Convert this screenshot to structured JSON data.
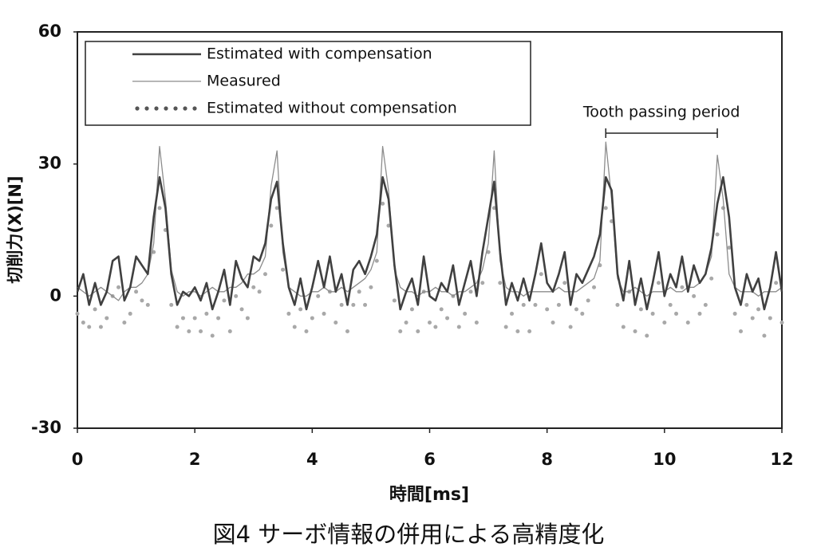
{
  "chart_data": {
    "type": "line",
    "title": "図4 サーボ情報の併用による高精度化",
    "xlabel": "時間[ms]",
    "ylabel": "切削力(X)[N]",
    "xlim": [
      0,
      12
    ],
    "xticks": [
      0,
      2,
      4,
      6,
      8,
      10,
      12
    ],
    "ylim": [
      -30,
      60
    ],
    "yticks": [
      -30,
      0,
      30,
      60
    ],
    "grid": false,
    "legend": "upper left",
    "annotation": {
      "text": "Tooth passing period",
      "x": [
        9,
        10.9
      ],
      "y": 37
    },
    "x": [
      0,
      0.1,
      0.2,
      0.3,
      0.4,
      0.5,
      0.6,
      0.7,
      0.8,
      0.9,
      1,
      1.1,
      1.2,
      1.3,
      1.4,
      1.5,
      1.6,
      1.7,
      1.8,
      1.9,
      2,
      2.1,
      2.2,
      2.3,
      2.4,
      2.5,
      2.6,
      2.7,
      2.8,
      2.9,
      3,
      3.1,
      3.2,
      3.3,
      3.4,
      3.5,
      3.6,
      3.7,
      3.8,
      3.9,
      4,
      4.1,
      4.2,
      4.3,
      4.4,
      4.5,
      4.6,
      4.7,
      4.8,
      4.9,
      5,
      5.1,
      5.2,
      5.3,
      5.4,
      5.5,
      5.6,
      5.7,
      5.8,
      5.9,
      6,
      6.1,
      6.2,
      6.3,
      6.4,
      6.5,
      6.6,
      6.7,
      6.8,
      6.9,
      7,
      7.1,
      7.2,
      7.3,
      7.4,
      7.5,
      7.6,
      7.7,
      7.8,
      7.9,
      8,
      8.1,
      8.2,
      8.3,
      8.4,
      8.5,
      8.6,
      8.7,
      8.8,
      8.9,
      9,
      9.1,
      9.2,
      9.3,
      9.4,
      9.5,
      9.6,
      9.7,
      9.8,
      9.9,
      10,
      10.1,
      10.2,
      10.3,
      10.4,
      10.5,
      10.6,
      10.7,
      10.8,
      10.9,
      11,
      11.1,
      11.2,
      11.3,
      11.4,
      11.5,
      11.6,
      11.7,
      11.8,
      11.9,
      12
    ],
    "series": [
      {
        "name": "Estimated with compensation",
        "color": "#404040",
        "style": "solid",
        "width": 2.6,
        "values": [
          1,
          5,
          -2,
          3,
          -2,
          1,
          8,
          9,
          -1,
          2,
          9,
          7,
          5,
          18,
          27,
          20,
          5,
          -2,
          1,
          0,
          2,
          -1,
          3,
          -3,
          1,
          6,
          -2,
          8,
          4,
          2,
          9,
          8,
          12,
          22,
          26,
          12,
          2,
          -2,
          4,
          -3,
          2,
          8,
          2,
          9,
          1,
          5,
          -2,
          6,
          8,
          5,
          9,
          14,
          27,
          22,
          7,
          -3,
          1,
          4,
          -2,
          9,
          0,
          -1,
          3,
          1,
          7,
          -2,
          3,
          8,
          0,
          10,
          18,
          26,
          10,
          -2,
          3,
          -1,
          4,
          -1,
          5,
          12,
          3,
          1,
          5,
          10,
          -2,
          5,
          3,
          6,
          9,
          14,
          27,
          24,
          5,
          -1,
          8,
          -2,
          4,
          -3,
          3,
          10,
          0,
          5,
          2,
          9,
          1,
          7,
          3,
          5,
          11,
          21,
          27,
          18,
          2,
          -2,
          5,
          1,
          4,
          -3,
          2,
          10,
          1
        ]
      },
      {
        "name": "Measured",
        "color": "#8c8c8c",
        "style": "solid",
        "width": 1.3,
        "values": [
          2,
          1,
          0,
          1,
          2,
          1,
          0,
          -1,
          1,
          2,
          2,
          3,
          5,
          12,
          34,
          22,
          6,
          1,
          0,
          1,
          1,
          0,
          1,
          2,
          1,
          1,
          2,
          2,
          3,
          5,
          5,
          6,
          9,
          25,
          33,
          10,
          2,
          1,
          0,
          0,
          1,
          1,
          2,
          1,
          1,
          2,
          1,
          2,
          3,
          4,
          6,
          10,
          34,
          24,
          6,
          2,
          1,
          1,
          0,
          1,
          1,
          2,
          1,
          1,
          0,
          1,
          1,
          2,
          3,
          6,
          12,
          33,
          8,
          2,
          1,
          1,
          0,
          1,
          1,
          1,
          1,
          1,
          2,
          1,
          1,
          1,
          2,
          3,
          4,
          8,
          35,
          22,
          4,
          1,
          1,
          2,
          1,
          0,
          1,
          1,
          1,
          2,
          1,
          1,
          2,
          2,
          3,
          5,
          9,
          32,
          22,
          5,
          2,
          1,
          1,
          1,
          0,
          1,
          1,
          1,
          2
        ]
      },
      {
        "name": "Estimated without compensation",
        "color": "#a8a8a8",
        "style": "dotted",
        "width": 5,
        "values": [
          -4,
          -6,
          -7,
          -3,
          -7,
          -5,
          0,
          2,
          -6,
          -4,
          1,
          -1,
          -2,
          10,
          20,
          15,
          -2,
          -7,
          -5,
          -8,
          -5,
          -8,
          -4,
          -9,
          -5,
          -1,
          -8,
          0,
          -3,
          -5,
          2,
          1,
          5,
          16,
          20,
          6,
          -4,
          -7,
          -3,
          -8,
          -5,
          0,
          -4,
          1,
          -6,
          -2,
          -8,
          -2,
          1,
          -2,
          2,
          8,
          21,
          16,
          -1,
          -8,
          -6,
          -3,
          -8,
          1,
          -6,
          -7,
          -3,
          -5,
          0,
          -7,
          -4,
          1,
          -6,
          3,
          10,
          20,
          3,
          -7,
          -4,
          -8,
          -2,
          -8,
          -2,
          5,
          -3,
          -6,
          -2,
          3,
          -7,
          -3,
          -4,
          -1,
          2,
          7,
          20,
          17,
          -2,
          -7,
          1,
          -8,
          -3,
          -9,
          -4,
          3,
          -6,
          -2,
          -4,
          2,
          -6,
          0,
          -4,
          -2,
          4,
          14,
          20,
          11,
          -4,
          -8,
          -2,
          -5,
          -3,
          -9,
          -5,
          3,
          -6
        ]
      }
    ]
  }
}
